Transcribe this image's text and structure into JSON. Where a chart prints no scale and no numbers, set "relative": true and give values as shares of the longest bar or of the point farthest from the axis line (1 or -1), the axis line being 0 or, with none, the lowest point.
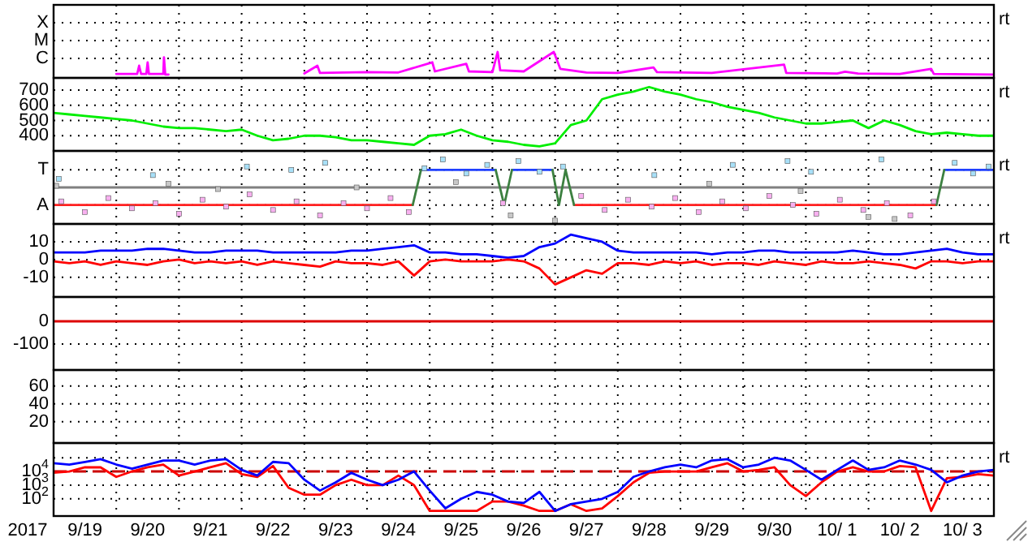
{
  "chart_data": [
    {
      "type": "line",
      "relative": true,
      "grid": true,
      "tick_labels": "y",
      "annotations": [
        "rt",
        "X",
        "M",
        "C"
      ],
      "xlim": [
        "2017-09-19T00:00",
        "2017-10-04T00:00"
      ],
      "xticks": [
        {
          "value": "2017-09-20T00:00",
          "label": null
        },
        {
          "value": "2017-09-21T00:00",
          "label": null
        },
        {
          "value": "2017-09-22T00:00",
          "label": null
        },
        {
          "value": "2017-09-23T00:00",
          "label": null
        },
        {
          "value": "2017-09-24T00:00",
          "label": null
        },
        {
          "value": "2017-09-25T00:00",
          "label": null
        },
        {
          "value": "2017-09-26T00:00",
          "label": null
        },
        {
          "value": "2017-09-27T00:00",
          "label": null
        },
        {
          "value": "2017-09-28T00:00",
          "label": null
        },
        {
          "value": "2017-09-29T00:00",
          "label": null
        },
        {
          "value": "2017-09-30T00:00",
          "label": null
        },
        {
          "value": "2017-10-01T00:00",
          "label": null
        },
        {
          "value": "2017-10-02T00:00",
          "label": null
        },
        {
          "value": "2017-10-03T00:00",
          "label": null
        }
      ],
      "series": [
        {
          "color": "#ff00ff",
          "x": [
            "2017-09-20T00:00",
            "2017-09-20T08:00",
            "2017-09-20T08:45",
            "2017-09-20T09:30",
            "2017-09-20T11:30",
            "2017-09-20T12:00",
            "2017-09-20T12:30",
            "2017-09-20T18:00",
            "2017-09-20T18:15",
            "2017-09-20T18:45",
            "2017-09-20T20:00",
            "2017-09-21T12:00",
            "2017-09-23T00:00",
            "2017-09-23T05:00",
            "2017-09-23T06:00",
            "2017-09-24T00:00",
            "2017-09-24T12:00",
            "2017-09-25T01:00",
            "2017-09-25T02:00",
            "2017-09-25T14:00",
            "2017-09-25T15:00",
            "2017-09-26T00:00",
            "2017-09-26T02:00",
            "2017-09-26T03:00",
            "2017-09-26T12:00",
            "2017-09-26T23:30",
            "2017-09-27T02:00",
            "2017-09-27T12:00",
            "2017-09-28T00:00",
            "2017-09-28T13:40",
            "2017-09-28T15:00",
            "2017-09-29T12:00",
            "2017-09-30T15:40",
            "2017-09-30T16:30",
            "2017-10-01T12:00",
            "2017-10-01T15:00",
            "2017-10-01T20:00",
            "2017-10-02T12:00",
            "2017-10-03T00:00",
            "2017-10-03T01:00",
            "2017-10-03T23:50"
          ],
          "values": [
            0.15,
            0.15,
            0.47,
            0.15,
            0.15,
            0.6,
            0.15,
            0.15,
            0.79,
            0.13,
            0.13,
            null,
            0.17,
            0.47,
            0.19,
            0.22,
            0.21,
            0.6,
            0.25,
            0.54,
            0.25,
            0.22,
            1,
            0.29,
            0.25,
            1,
            0.35,
            0.21,
            0.19,
            0.4,
            0.22,
            0.19,
            0.51,
            0.19,
            0.17,
            0.24,
            0.17,
            0.15,
            0.35,
            0.15,
            0.13
          ]
        }
      ]
    },
    {
      "type": "line",
      "grid": true,
      "tick_labels": "y",
      "annotations": [
        "rt"
      ],
      "xlim": [
        "2017-09-19T00:00",
        "2017-10-04T00:00"
      ],
      "xticks": [
        {
          "value": "2017-09-20T00:00",
          "label": null
        },
        {
          "value": "2017-09-21T00:00",
          "label": null
        },
        {
          "value": "2017-09-22T00:00",
          "label": null
        },
        {
          "value": "2017-09-23T00:00",
          "label": null
        },
        {
          "value": "2017-09-24T00:00",
          "label": null
        },
        {
          "value": "2017-09-25T00:00",
          "label": null
        },
        {
          "value": "2017-09-26T00:00",
          "label": null
        },
        {
          "value": "2017-09-27T00:00",
          "label": null
        },
        {
          "value": "2017-09-28T00:00",
          "label": null
        },
        {
          "value": "2017-09-29T00:00",
          "label": null
        },
        {
          "value": "2017-09-30T00:00",
          "label": null
        },
        {
          "value": "2017-10-01T00:00",
          "label": null
        },
        {
          "value": "2017-10-02T00:00",
          "label": null
        },
        {
          "value": "2017-10-03T00:00",
          "label": null
        }
      ],
      "ylim": [
        300,
        780
      ],
      "yticks": [
        400,
        500,
        600,
        700
      ],
      "x": [
        "2017-09-19T00:00",
        "2017-09-19T06:00",
        "2017-09-19T12:00",
        "2017-09-19T18:00",
        "2017-09-20T00:00",
        "2017-09-20T06:00",
        "2017-09-20T12:00",
        "2017-09-20T18:00",
        "2017-09-21T00:00",
        "2017-09-21T06:00",
        "2017-09-21T12:00",
        "2017-09-21T18:00",
        "2017-09-22T00:00",
        "2017-09-22T06:00",
        "2017-09-22T12:00",
        "2017-09-22T18:00",
        "2017-09-23T00:00",
        "2017-09-23T06:00",
        "2017-09-23T12:00",
        "2017-09-23T18:00",
        "2017-09-24T00:00",
        "2017-09-24T06:00",
        "2017-09-24T12:00",
        "2017-09-24T18:00",
        "2017-09-25T00:00",
        "2017-09-25T06:00",
        "2017-09-25T12:00",
        "2017-09-25T18:00",
        "2017-09-26T00:00",
        "2017-09-26T06:00",
        "2017-09-26T12:00",
        "2017-09-26T18:00",
        "2017-09-27T00:00",
        "2017-09-27T06:00",
        "2017-09-27T12:00",
        "2017-09-27T18:00",
        "2017-09-28T00:00",
        "2017-09-28T06:00",
        "2017-09-28T12:00",
        "2017-09-28T18:00",
        "2017-09-29T00:00",
        "2017-09-29T06:00",
        "2017-09-29T12:00",
        "2017-09-29T18:00",
        "2017-09-30T00:00",
        "2017-09-30T06:00",
        "2017-09-30T12:00",
        "2017-09-30T18:00",
        "2017-10-01T00:00",
        "2017-10-01T06:00",
        "2017-10-01T12:00",
        "2017-10-01T18:00",
        "2017-10-02T00:00",
        "2017-10-02T06:00",
        "2017-10-02T12:00",
        "2017-10-02T18:00",
        "2017-10-03T00:00",
        "2017-10-03T06:00",
        "2017-10-03T12:00",
        "2017-10-03T18:00",
        "2017-10-04T00:00"
      ],
      "series": [
        {
          "color": "#00ee00",
          "values": [
            550,
            540,
            530,
            520,
            510,
            500,
            480,
            460,
            450,
            450,
            440,
            430,
            440,
            400,
            370,
            380,
            400,
            400,
            390,
            370,
            370,
            360,
            350,
            340,
            400,
            410,
            440,
            400,
            370,
            360,
            340,
            330,
            350,
            470,
            500,
            640,
            670,
            690,
            720,
            690,
            670,
            640,
            620,
            590,
            570,
            550,
            520,
            500,
            480,
            480,
            490,
            500,
            450,
            500,
            470,
            430,
            410,
            420,
            410,
            400,
            400
          ]
        }
      ]
    },
    {
      "type": "line",
      "relative": true,
      "grid": true,
      "tick_labels": "y",
      "annotations": [
        "rt",
        {
          "text": "T",
          "x": "2017-09-19T00:00",
          "y": 0.53
        },
        {
          "text": "A",
          "x": "2017-09-19T00:00",
          "y": -0.53
        }
      ],
      "xlim": [
        "2017-09-19T00:00",
        "2017-10-04T00:00"
      ],
      "xticks": [
        {
          "value": "2017-09-20T00:00",
          "label": null
        },
        {
          "value": "2017-09-21T00:00",
          "label": null
        },
        {
          "value": "2017-09-22T00:00",
          "label": null
        },
        {
          "value": "2017-09-23T00:00",
          "label": null
        },
        {
          "value": "2017-09-24T00:00",
          "label": null
        },
        {
          "value": "2017-09-25T00:00",
          "label": null
        },
        {
          "value": "2017-09-26T00:00",
          "label": null
        },
        {
          "value": "2017-09-27T00:00",
          "label": null
        },
        {
          "value": "2017-09-28T00:00",
          "label": null
        },
        {
          "value": "2017-09-29T00:00",
          "label": null
        },
        {
          "value": "2017-09-30T00:00",
          "label": null
        },
        {
          "value": "2017-10-01T00:00",
          "label": null
        },
        {
          "value": "2017-10-02T00:00",
          "label": null
        },
        {
          "value": "2017-10-03T00:00",
          "label": null
        }
      ],
      "ref_lines": [
        {
          "axis": "y",
          "value": 0,
          "color": "#808080"
        }
      ],
      "series": [
        {
          "type": "scatter",
          "marker": "square",
          "color": "#f8b0f0",
          "x": [
            "2017-09-19T03:00",
            "2017-09-19T12:00",
            "2017-09-19T21:00",
            "2017-09-20T06:00",
            "2017-09-20T15:00",
            "2017-09-21T00:00",
            "2017-09-21T09:00",
            "2017-09-21T18:00",
            "2017-09-22T03:00",
            "2017-09-22T12:00",
            "2017-09-22T21:00",
            "2017-09-23T06:00",
            "2017-09-23T15:00",
            "2017-09-24T00:00",
            "2017-09-24T09:00",
            "2017-09-24T16:00",
            "2017-09-26T04:00",
            "2017-09-27T10:00",
            "2017-09-27T19:00",
            "2017-09-28T04:00",
            "2017-09-28T13:00",
            "2017-09-28T22:00",
            "2017-09-29T07:00",
            "2017-09-29T16:00",
            "2017-09-30T01:00",
            "2017-09-30T10:00",
            "2017-09-30T19:00",
            "2017-10-01T04:00",
            "2017-10-01T13:00",
            "2017-10-01T22:00",
            "2017-10-02T07:00",
            "2017-10-02T16:00",
            "2017-10-03T01:00"
          ],
          "values": [
            -0.42,
            -0.74,
            -0.32,
            -0.63,
            -0.47,
            -0.79,
            -0.37,
            -0.58,
            -0.21,
            -0.68,
            -0.42,
            -0.84,
            -0.47,
            -0.63,
            -0.32,
            -0.74,
            -0.47,
            -0.26,
            -0.68,
            -0.37,
            -0.58,
            -0.32,
            -0.74,
            -0.42,
            -0.63,
            -0.26,
            -0.53,
            -0.79,
            -0.37,
            -0.68,
            -0.47,
            -0.84,
            -0.42
          ]
        },
        {
          "type": "scatter",
          "marker": "square",
          "color": "#a8e0f8",
          "x": [
            "2017-09-19T02:00",
            "2017-09-20T14:00",
            "2017-09-22T02:00",
            "2017-09-22T19:00",
            "2017-09-23T08:00",
            "2017-09-24T22:00",
            "2017-09-25T05:00",
            "2017-09-25T14:00",
            "2017-09-25T22:00",
            "2017-09-26T10:00",
            "2017-09-26T18:00",
            "2017-09-27T03:00",
            "2017-09-28T14:00",
            "2017-09-29T20:00",
            "2017-09-30T17:00",
            "2017-10-01T02:00",
            "2017-10-02T05:00",
            "2017-10-03T09:00",
            "2017-10-03T16:00",
            "2017-10-03T22:00"
          ],
          "values": [
            0.26,
            0.37,
            0.63,
            0.53,
            0.74,
            0.58,
            0.84,
            0.42,
            0.68,
            0.79,
            0.47,
            0.63,
            0.37,
            0.68,
            0.79,
            0.47,
            0.84,
            0.74,
            0.42,
            0.63
          ]
        },
        {
          "type": "scatter",
          "marker": "square",
          "color": "#c8c8c8",
          "x": [
            "2017-09-19T01:00",
            "2017-09-20T20:00",
            "2017-09-21T15:00",
            "2017-09-23T20:00",
            "2017-09-25T10:00",
            "2017-09-26T07:00",
            "2017-09-27T00:00",
            "2017-09-29T11:00",
            "2017-09-30T22:00",
            "2017-10-02T00:00",
            "2017-10-02T10:00"
          ],
          "values": [
            0.05,
            0.11,
            -0.05,
            0,
            0.16,
            -0.84,
            -1,
            0.11,
            -0.11,
            -0.89,
            -0.95
          ]
        },
        {
          "type": "line",
          "color": "#ff2020",
          "x": [
            "2017-09-19T00:00",
            "2017-09-24T17:30",
            "2017-09-25T12:00",
            "2017-09-27T07:15",
            "2017-10-03T02:00"
          ],
          "values": [
            -0.53,
            -0.53,
            null,
            -0.53,
            -0.53
          ]
        },
        {
          "type": "line",
          "color": "#2040ff",
          "x": [
            "2017-09-24T20:40",
            "2017-09-26T01:15",
            "2017-09-26T04:00",
            "2017-09-26T07:30",
            "2017-09-26T23:00",
            "2017-09-27T12:00",
            "2017-10-03T05:00",
            "2017-10-04T00:00"
          ],
          "values": [
            0.53,
            0.53,
            null,
            0.53,
            0.53,
            null,
            0.53,
            0.53
          ]
        },
        {
          "type": "line",
          "color": "#3c8040",
          "x": [
            "2017-09-24T17:30",
            "2017-09-24T20:40",
            "2017-09-25T12:00",
            "2017-09-26T01:15",
            "2017-09-26T04:30",
            "2017-09-26T07:30",
            "2017-09-26T12:00",
            "2017-09-26T23:00",
            "2017-09-27T01:30",
            "2017-09-27T04:00",
            "2017-09-27T07:15",
            "2017-09-30T00:00",
            "2017-10-03T02:00",
            "2017-10-03T05:00"
          ],
          "values": [
            -0.53,
            0.53,
            null,
            0.53,
            -0.53,
            0.53,
            null,
            0.53,
            -0.53,
            0.53,
            -0.53,
            null,
            -0.53,
            0.53
          ]
        }
      ]
    },
    {
      "type": "line",
      "grid": true,
      "tick_labels": "y",
      "annotations": [
        "rt"
      ],
      "xlim": [
        "2017-09-19T00:00",
        "2017-10-04T00:00"
      ],
      "xticks": [
        {
          "value": "2017-09-20T00:00",
          "label": null
        },
        {
          "value": "2017-09-21T00:00",
          "label": null
        },
        {
          "value": "2017-09-22T00:00",
          "label": null
        },
        {
          "value": "2017-09-23T00:00",
          "label": null
        },
        {
          "value": "2017-09-24T00:00",
          "label": null
        },
        {
          "value": "2017-09-25T00:00",
          "label": null
        },
        {
          "value": "2017-09-26T00:00",
          "label": null
        },
        {
          "value": "2017-09-27T00:00",
          "label": null
        },
        {
          "value": "2017-09-28T00:00",
          "label": null
        },
        {
          "value": "2017-09-29T00:00",
          "label": null
        },
        {
          "value": "2017-09-30T00:00",
          "label": null
        },
        {
          "value": "2017-10-01T00:00",
          "label": null
        },
        {
          "value": "2017-10-02T00:00",
          "label": null
        },
        {
          "value": "2017-10-03T00:00",
          "label": null
        }
      ],
      "ylim": [
        -21,
        20
      ],
      "yticks": [
        -10,
        0,
        10
      ],
      "x": [
        "2017-09-19T00:00",
        "2017-09-19T06:00",
        "2017-09-19T12:00",
        "2017-09-19T18:00",
        "2017-09-20T00:00",
        "2017-09-20T06:00",
        "2017-09-20T12:00",
        "2017-09-20T18:00",
        "2017-09-21T00:00",
        "2017-09-21T06:00",
        "2017-09-21T12:00",
        "2017-09-21T18:00",
        "2017-09-22T00:00",
        "2017-09-22T06:00",
        "2017-09-22T12:00",
        "2017-09-22T18:00",
        "2017-09-23T00:00",
        "2017-09-23T06:00",
        "2017-09-23T12:00",
        "2017-09-23T18:00",
        "2017-09-24T00:00",
        "2017-09-24T06:00",
        "2017-09-24T12:00",
        "2017-09-24T18:00",
        "2017-09-25T00:00",
        "2017-09-25T06:00",
        "2017-09-25T12:00",
        "2017-09-25T18:00",
        "2017-09-26T00:00",
        "2017-09-26T06:00",
        "2017-09-26T12:00",
        "2017-09-26T18:00",
        "2017-09-27T00:00",
        "2017-09-27T06:00",
        "2017-09-27T12:00",
        "2017-09-27T18:00",
        "2017-09-28T00:00",
        "2017-09-28T06:00",
        "2017-09-28T12:00",
        "2017-09-28T18:00",
        "2017-09-29T00:00",
        "2017-09-29T06:00",
        "2017-09-29T12:00",
        "2017-09-29T18:00",
        "2017-09-30T00:00",
        "2017-09-30T06:00",
        "2017-09-30T12:00",
        "2017-09-30T18:00",
        "2017-10-01T00:00",
        "2017-10-01T06:00",
        "2017-10-01T12:00",
        "2017-10-01T18:00",
        "2017-10-02T00:00",
        "2017-10-02T06:00",
        "2017-10-02T12:00",
        "2017-10-02T18:00",
        "2017-10-03T00:00",
        "2017-10-03T06:00",
        "2017-10-03T12:00",
        "2017-10-03T18:00",
        "2017-10-04T00:00"
      ],
      "series": [
        {
          "color": "#0000ff",
          "values": [
            4,
            4,
            4,
            5,
            5,
            5,
            6,
            6,
            5,
            4,
            4,
            5,
            5,
            5,
            4,
            4,
            4,
            4,
            4,
            5,
            5,
            6,
            7,
            8,
            4,
            4,
            3,
            3,
            2,
            1,
            2,
            7,
            9,
            14,
            12,
            10,
            5,
            4,
            4,
            4,
            4,
            4,
            3,
            4,
            4,
            5,
            5,
            4,
            4,
            4,
            4,
            5,
            4,
            3,
            3,
            4,
            5,
            6,
            4,
            3,
            3
          ]
        },
        {
          "color": "#ff0000",
          "values": [
            -1,
            -2,
            -1,
            -3,
            -1,
            -2,
            -3,
            -1,
            0,
            -2,
            -1,
            -2,
            -1,
            -3,
            -1,
            -2,
            -3,
            -4,
            -1,
            -2,
            -2,
            -3,
            -1,
            -9,
            -1,
            0,
            -1,
            -1,
            -1,
            0,
            -1,
            -5,
            -14,
            -10,
            -6,
            -8,
            -2,
            -2,
            -3,
            -1,
            -2,
            -1,
            -3,
            -2,
            -2,
            -3,
            -1,
            -2,
            -3,
            -1,
            -2,
            -2,
            -1,
            -2,
            -3,
            -5,
            -1,
            -1,
            -2,
            -1,
            -1
          ]
        }
      ]
    },
    {
      "type": "line",
      "grid": true,
      "tick_labels": "y",
      "xlim": [
        "2017-09-19T00:00",
        "2017-10-04T00:00"
      ],
      "xticks": [
        {
          "value": "2017-09-20T00:00",
          "label": null
        },
        {
          "value": "2017-09-21T00:00",
          "label": null
        },
        {
          "value": "2017-09-22T00:00",
          "label": null
        },
        {
          "value": "2017-09-23T00:00",
          "label": null
        },
        {
          "value": "2017-09-24T00:00",
          "label": null
        },
        {
          "value": "2017-09-25T00:00",
          "label": null
        },
        {
          "value": "2017-09-26T00:00",
          "label": null
        },
        {
          "value": "2017-09-27T00:00",
          "label": null
        },
        {
          "value": "2017-09-28T00:00",
          "label": null
        },
        {
          "value": "2017-09-29T00:00",
          "label": null
        },
        {
          "value": "2017-09-30T00:00",
          "label": null
        },
        {
          "value": "2017-10-01T00:00",
          "label": null
        },
        {
          "value": "2017-10-02T00:00",
          "label": null
        },
        {
          "value": "2017-10-03T00:00",
          "label": null
        }
      ],
      "ylim": [
        -214,
        107
      ],
      "yticks": [
        -100,
        0
      ],
      "series": [
        {
          "color": "#dd0000",
          "x": [
            "2017-09-19T00:00",
            "2017-10-04T00:00"
          ],
          "values": [
            0,
            0
          ]
        }
      ]
    },
    {
      "type": "line",
      "grid": true,
      "tick_labels": "y",
      "xlim": [
        "2017-09-19T00:00",
        "2017-10-04T00:00"
      ],
      "xticks": [
        {
          "value": "2017-09-20T00:00",
          "label": null
        },
        {
          "value": "2017-09-21T00:00",
          "label": null
        },
        {
          "value": "2017-09-22T00:00",
          "label": null
        },
        {
          "value": "2017-09-23T00:00",
          "label": null
        },
        {
          "value": "2017-09-24T00:00",
          "label": null
        },
        {
          "value": "2017-09-25T00:00",
          "label": null
        },
        {
          "value": "2017-09-26T00:00",
          "label": null
        },
        {
          "value": "2017-09-27T00:00",
          "label": null
        },
        {
          "value": "2017-09-28T00:00",
          "label": null
        },
        {
          "value": "2017-09-29T00:00",
          "label": null
        },
        {
          "value": "2017-09-30T00:00",
          "label": null
        },
        {
          "value": "2017-10-01T00:00",
          "label": null
        },
        {
          "value": "2017-10-02T00:00",
          "label": null
        },
        {
          "value": "2017-10-03T00:00",
          "label": null
        }
      ],
      "ylim": [
        -4,
        78
      ],
      "yticks": [
        20,
        40,
        60
      ]
    },
    {
      "type": "line",
      "log": "y",
      "grid": true,
      "xlabel": "2017",
      "annotations": [
        "rt"
      ],
      "xlim": [
        "2017-09-19T00:00",
        "2017-10-04T00:00"
      ],
      "xticks": [
        {
          "value": "2017-09-20T00:00",
          "label": null
        },
        {
          "value": "2017-09-21T00:00",
          "label": null
        },
        {
          "value": "2017-09-22T00:00",
          "label": null
        },
        {
          "value": "2017-09-23T00:00",
          "label": null
        },
        {
          "value": "2017-09-24T00:00",
          "label": null
        },
        {
          "value": "2017-09-25T00:00",
          "label": null
        },
        {
          "value": "2017-09-26T00:00",
          "label": null
        },
        {
          "value": "2017-09-27T00:00",
          "label": null
        },
        {
          "value": "2017-09-28T00:00",
          "label": null
        },
        {
          "value": "2017-09-29T00:00",
          "label": null
        },
        {
          "value": "2017-09-30T00:00",
          "label": null
        },
        {
          "value": "2017-10-01T00:00",
          "label": null
        },
        {
          "value": "2017-10-02T00:00",
          "label": null
        },
        {
          "value": "2017-10-03T00:00",
          "label": null
        },
        {
          "value": "2017-09-19T12:00",
          "label": "9/19"
        },
        {
          "value": "2017-09-20T12:00",
          "label": "9/20"
        },
        {
          "value": "2017-09-21T12:00",
          "label": "9/21"
        },
        {
          "value": "2017-09-22T12:00",
          "label": "9/22"
        },
        {
          "value": "2017-09-23T12:00",
          "label": "9/23"
        },
        {
          "value": "2017-09-24T12:00",
          "label": "9/24"
        },
        {
          "value": "2017-09-25T12:00",
          "label": "9/25"
        },
        {
          "value": "2017-09-26T12:00",
          "label": "9/26"
        },
        {
          "value": "2017-09-27T12:00",
          "label": "9/27"
        },
        {
          "value": "2017-09-28T12:00",
          "label": "9/28"
        },
        {
          "value": "2017-09-29T12:00",
          "label": "9/29"
        },
        {
          "value": "2017-09-30T12:00",
          "label": "9/30"
        },
        {
          "value": "2017-10-01T12:00",
          "label": "10/ 1"
        },
        {
          "value": "2017-10-02T12:00",
          "label": "10/ 2"
        },
        {
          "value": "2017-10-03T12:00",
          "label": "10/ 3"
        }
      ],
      "ylim": [
        5.5,
        1200000
      ],
      "yticks": [
        {
          "value": 100,
          "label": "10$^{2}$"
        },
        {
          "value": 1000,
          "label": "10$^{3}$"
        },
        {
          "value": 10000,
          "label": "10$^{4}$"
        },
        {
          "value": 100000,
          "label": null
        }
      ],
      "ref_lines": [
        {
          "axis": "y",
          "value": 10000,
          "color": "#cc0000",
          "line_style": "dashed"
        }
      ],
      "x": [
        "2017-09-19T00:00",
        "2017-09-19T06:00",
        "2017-09-19T12:00",
        "2017-09-19T18:00",
        "2017-09-20T00:00",
        "2017-09-20T06:00",
        "2017-09-20T12:00",
        "2017-09-20T18:00",
        "2017-09-21T00:00",
        "2017-09-21T06:00",
        "2017-09-21T12:00",
        "2017-09-21T18:00",
        "2017-09-22T00:00",
        "2017-09-22T06:00",
        "2017-09-22T12:00",
        "2017-09-22T18:00",
        "2017-09-23T00:00",
        "2017-09-23T06:00",
        "2017-09-23T12:00",
        "2017-09-23T18:00",
        "2017-09-24T00:00",
        "2017-09-24T06:00",
        "2017-09-24T12:00",
        "2017-09-24T18:00",
        "2017-09-25T00:00",
        "2017-09-25T06:00",
        "2017-09-25T12:00",
        "2017-09-25T18:00",
        "2017-09-26T00:00",
        "2017-09-26T06:00",
        "2017-09-26T12:00",
        "2017-09-26T18:00",
        "2017-09-27T00:00",
        "2017-09-27T06:00",
        "2017-09-27T12:00",
        "2017-09-27T18:00",
        "2017-09-28T00:00",
        "2017-09-28T06:00",
        "2017-09-28T12:00",
        "2017-09-28T18:00",
        "2017-09-29T00:00",
        "2017-09-29T06:00",
        "2017-09-29T12:00",
        "2017-09-29T18:00",
        "2017-09-30T00:00",
        "2017-09-30T06:00",
        "2017-09-30T12:00",
        "2017-09-30T18:00",
        "2017-10-01T00:00",
        "2017-10-01T06:00",
        "2017-10-01T12:00",
        "2017-10-01T18:00",
        "2017-10-02T00:00",
        "2017-10-02T06:00",
        "2017-10-02T12:00",
        "2017-10-02T18:00",
        "2017-10-03T00:00",
        "2017-10-03T06:00",
        "2017-10-03T12:00",
        "2017-10-03T18:00",
        "2017-10-04T00:00"
      ],
      "series": [
        {
          "color": "#ff0000",
          "values": [
            8000,
            10000,
            20000,
            20000,
            4000,
            10000,
            20000,
            32000,
            5000,
            10000,
            20000,
            40000,
            6300,
            4000,
            25000,
            630,
            200,
            200,
            1000,
            2500,
            1000,
            1000,
            5000,
            1000,
            13,
            13,
            13,
            13,
            63,
            63,
            32,
            13,
            13,
            40,
            13,
            20,
            160,
            1600,
            8000,
            10000,
            10000,
            10000,
            20000,
            40000,
            10000,
            13000,
            20000,
            1000,
            160,
            1600,
            10000,
            20000,
            10000,
            10000,
            25000,
            20000,
            13,
            3200,
            4000,
            6300,
            5000
          ]
        },
        {
          "color": "#0000ff",
          "values": [
            40000,
            32000,
            50000,
            79000,
            32000,
            16000,
            32000,
            63000,
            63000,
            32000,
            63000,
            79000,
            13000,
            5000,
            50000,
            40000,
            2500,
            400,
            1600,
            8000,
            2500,
            1000,
            2500,
            10000,
            400,
            20,
            100,
            320,
            200,
            63,
            50,
            320,
            13,
            40,
            63,
            100,
            320,
            4000,
            10000,
            20000,
            32000,
            20000,
            63000,
            79000,
            20000,
            32000,
            100000,
            63000,
            13000,
            2500,
            13000,
            63000,
            13000,
            20000,
            63000,
            32000,
            13000,
            1600,
            5000,
            10000,
            13000
          ]
        }
      ]
    }
  ]
}
